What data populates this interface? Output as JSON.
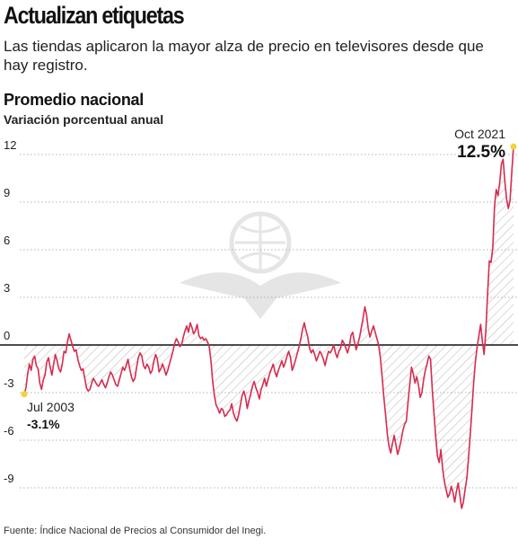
{
  "headline": "Actualizan etiquetas",
  "deck": "Las tiendas aplicaron la mayor alza de precio en televisores desde que hay registro.",
  "chart_title": "Promedio nacional",
  "chart_subtitle": "Variación porcentual anual",
  "source": "Fuente: Índice Nacional de Precios al Consumidor del Inegi.",
  "colors": {
    "line": "#d72b4f",
    "hatch": "#b5b5b5",
    "grid": "#9a9a9a",
    "zero_line": "#111111",
    "marker": "#f3d23a"
  },
  "chart_data": {
    "type": "line",
    "x_start": "Jul 2003",
    "x_end": "Oct 2021",
    "ylim": [
      -11,
      13.5
    ],
    "yticks": [
      12,
      9,
      6,
      3,
      0,
      -3,
      -6,
      -9
    ],
    "ytick_labels": [
      "12",
      "9",
      "6",
      "3",
      "0",
      "-3",
      "-6",
      "-9"
    ],
    "grid": "horizontal dotted",
    "fill": "hatched area between line and zero",
    "annotations": [
      {
        "id": "start",
        "date_label": "Jul 2003",
        "value_label": "-3.1%",
        "value": -3.1
      },
      {
        "id": "end",
        "date_label": "Oct 2021",
        "value_label": "12.5%",
        "value": 12.5
      }
    ],
    "series": [
      {
        "values": [
          -3.1,
          -2.7,
          -1.8,
          -1.2,
          -1.6,
          -0.9,
          -0.7,
          -1.3,
          -1.5,
          -2.4,
          -2.8,
          -2.2,
          -1.9,
          -1.1,
          -0.8,
          -1.4,
          -1.9,
          -1.2,
          -0.6,
          -1.0,
          -1.5,
          -1.7,
          -1.2,
          -0.4,
          -0.5,
          0.2,
          0.7,
          0.3,
          -0.1,
          -0.4,
          -0.3,
          -0.9,
          -1.3,
          -1.6,
          -1.5,
          -2.1,
          -2.7,
          -2.9,
          -2.8,
          -2.4,
          -2.1,
          -2.3,
          -2.5,
          -2.6,
          -2.4,
          -2.2,
          -2.5,
          -2.7,
          -2.4,
          -2.0,
          -1.7,
          -1.9,
          -2.2,
          -2.5,
          -2.6,
          -2.2,
          -1.8,
          -1.4,
          -1.6,
          -1.3,
          -0.9,
          -1.5,
          -2.0,
          -2.3,
          -2.1,
          -1.4,
          -0.8,
          -0.5,
          -0.7,
          -1.3,
          -1.5,
          -1.2,
          -1.4,
          -1.8,
          -1.6,
          -1.0,
          -0.6,
          -0.9,
          -1.7,
          -1.5,
          -1.2,
          -1.5,
          -1.9,
          -1.6,
          -1.2,
          -0.8,
          -0.4,
          0.1,
          0.4,
          0.2,
          -0.1,
          0.0,
          0.5,
          0.9,
          1.2,
          0.8,
          1.4,
          1.1,
          0.7,
          0.9,
          1.3,
          0.6,
          0.4,
          0.5,
          0.3,
          0.4,
          0.2,
          -0.1,
          -1.0,
          -2.3,
          -3.2,
          -3.8,
          -4.0,
          -4.3,
          -4.0,
          -4.1,
          -4.5,
          -4.4,
          -4.2,
          -4.1,
          -3.7,
          -4.3,
          -4.6,
          -4.8,
          -4.4,
          -3.8,
          -3.2,
          -2.9,
          -3.3,
          -4.0,
          -3.5,
          -3.1,
          -2.6,
          -2.3,
          -2.7,
          -3.0,
          -3.4,
          -2.8,
          -2.5,
          -2.1,
          -2.6,
          -2.2,
          -1.8,
          -1.5,
          -1.2,
          -1.7,
          -2.0,
          -1.6,
          -1.3,
          -1.0,
          -1.4,
          -1.1,
          -0.7,
          -0.4,
          -0.8,
          -1.6,
          -1.3,
          -0.9,
          -0.5,
          -0.1,
          0.4,
          1.0,
          1.4,
          0.9,
          0.5,
          -0.2,
          -0.5,
          -0.3,
          -0.6,
          -1.0,
          -0.7,
          -0.4,
          -0.6,
          -0.9,
          -1.3,
          -0.8,
          -0.4,
          -0.5,
          -0.3,
          0.0,
          -0.5,
          -0.8,
          -0.4,
          -0.2,
          0.3,
          0.1,
          -0.2,
          -0.5,
          -0.1,
          0.6,
          0.8,
          0.2,
          -0.3,
          0.1,
          0.5,
          1.1,
          1.7,
          2.4,
          1.9,
          1.0,
          0.5,
          0.9,
          1.2,
          0.8,
          0.4,
          0.0,
          -0.8,
          -2.0,
          -3.3,
          -4.4,
          -5.6,
          -6.4,
          -6.8,
          -6.2,
          -5.7,
          -6.3,
          -6.9,
          -6.5,
          -6.0,
          -5.4,
          -5.0,
          -4.8,
          -3.6,
          -2.5,
          -1.4,
          -1.8,
          -2.4,
          -2.0,
          -2.5,
          -3.3,
          -3.0,
          -2.2,
          -1.6,
          -1.2,
          -0.7,
          -0.9,
          -2.8,
          -4.3,
          -5.8,
          -7.0,
          -7.4,
          -6.6,
          -7.8,
          -8.6,
          -9.1,
          -9.6,
          -9.4,
          -8.9,
          -9.3,
          -9.9,
          -9.2,
          -8.7,
          -9.5,
          -10.3,
          -9.9,
          -9.1,
          -8.4,
          -7.1,
          -5.6,
          -4.0,
          -2.3,
          -1.0,
          -0.1,
          0.6,
          1.3,
          0.2,
          -0.6,
          0.9,
          3.2,
          5.3,
          5.2,
          6.1,
          8.7,
          9.8,
          9.4,
          10.2,
          11.4,
          11.7,
          10.3,
          9.2,
          8.6,
          9.1,
          10.9,
          12.5
        ]
      }
    ]
  }
}
